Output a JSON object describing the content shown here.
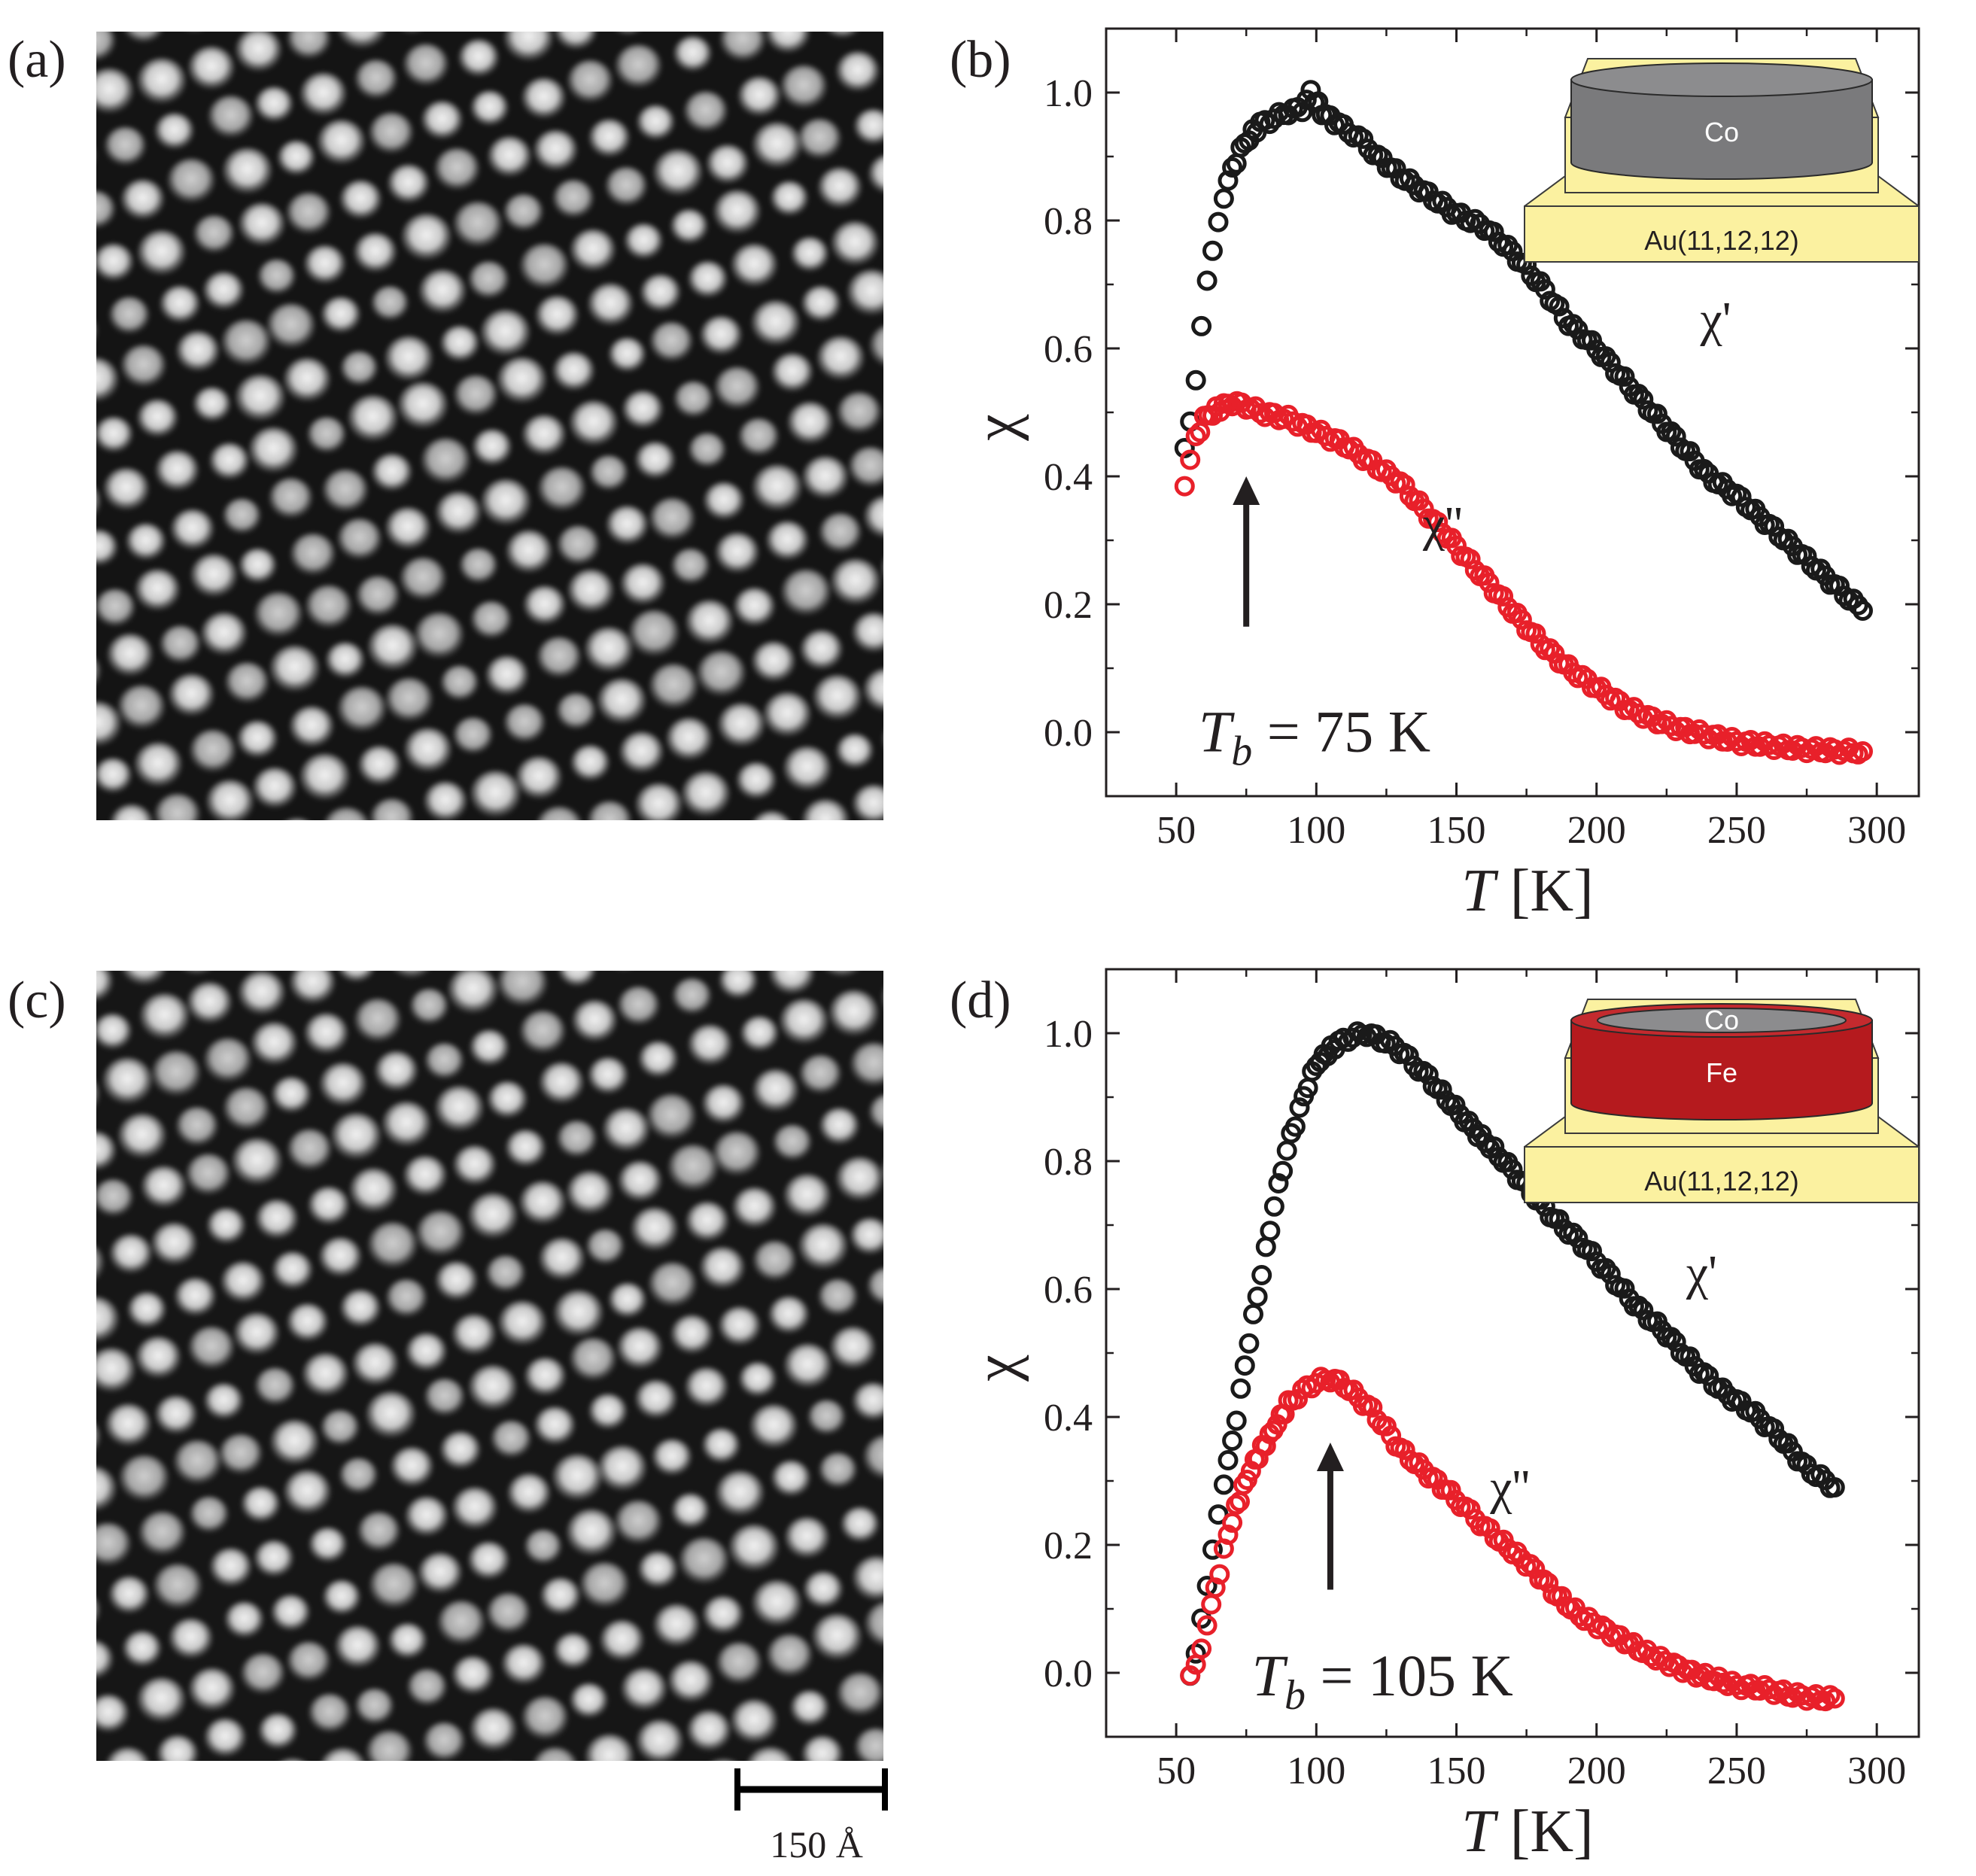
{
  "panels": {
    "a": {
      "label": "(a)"
    },
    "b": {
      "label": "(b)"
    },
    "c": {
      "label": "(c)"
    },
    "d": {
      "label": "(d)"
    }
  },
  "scale_bar": {
    "label": "150 Å"
  },
  "colors": {
    "chi_prime": "#1a1a1a",
    "chi_double_prime": "#e8202a",
    "substrate": "#fbf1a0",
    "co_grey": "#7a7a7c",
    "fe_red": "#b51a1e",
    "axis": "#231f20"
  },
  "chart_data": [
    {
      "id": "b",
      "type": "scatter",
      "xlabel_italic": "T",
      "xlabel_unit": "[K]",
      "ylabel": "χ",
      "xlim": [
        25,
        315
      ],
      "ylim": [
        -0.1,
        1.1
      ],
      "xticks": [
        "50",
        "100",
        "150",
        "200",
        "250",
        "300"
      ],
      "yticks": [
        "0.0",
        "0.2",
        "0.4",
        "0.6",
        "0.8",
        "1.0"
      ],
      "series": [
        {
          "name": "χ'",
          "color": "#1a1a1a",
          "points": [
            [
              53,
              0.45
            ],
            [
              55,
              0.49
            ],
            [
              57,
              0.55
            ],
            [
              59,
              0.63
            ],
            [
              61,
              0.7
            ],
            [
              63,
              0.75
            ],
            [
              65,
              0.8
            ],
            [
              67,
              0.84
            ],
            [
              70,
              0.88
            ],
            [
              73,
              0.91
            ],
            [
              76,
              0.93
            ],
            [
              80,
              0.95
            ],
            [
              85,
              0.96
            ],
            [
              90,
              0.97
            ],
            [
              95,
              0.975
            ],
            [
              98,
              1.0
            ],
            [
              102,
              0.97
            ],
            [
              108,
              0.95
            ],
            [
              115,
              0.93
            ],
            [
              122,
              0.9
            ],
            [
              130,
              0.87
            ],
            [
              140,
              0.84
            ],
            [
              150,
              0.81
            ],
            [
              160,
              0.79
            ],
            [
              170,
              0.75
            ],
            [
              180,
              0.7
            ],
            [
              190,
              0.64
            ],
            [
              200,
              0.6
            ],
            [
              210,
              0.55
            ],
            [
              220,
              0.5
            ],
            [
              230,
              0.45
            ],
            [
              240,
              0.4
            ],
            [
              250,
              0.37
            ],
            [
              260,
              0.33
            ],
            [
              270,
              0.29
            ],
            [
              280,
              0.25
            ],
            [
              290,
              0.21
            ],
            [
              295,
              0.19
            ]
          ]
        },
        {
          "name": "χ''",
          "color": "#e8202a",
          "points": [
            [
              53,
              0.38
            ],
            [
              55,
              0.42
            ],
            [
              57,
              0.46
            ],
            [
              60,
              0.49
            ],
            [
              63,
              0.5
            ],
            [
              67,
              0.51
            ],
            [
              70,
              0.515
            ],
            [
              75,
              0.51
            ],
            [
              80,
              0.5
            ],
            [
              90,
              0.49
            ],
            [
              100,
              0.47
            ],
            [
              110,
              0.45
            ],
            [
              120,
              0.42
            ],
            [
              130,
              0.39
            ],
            [
              140,
              0.34
            ],
            [
              150,
              0.29
            ],
            [
              160,
              0.24
            ],
            [
              170,
              0.19
            ],
            [
              180,
              0.14
            ],
            [
              190,
              0.1
            ],
            [
              200,
              0.07
            ],
            [
              210,
              0.04
            ],
            [
              220,
              0.02
            ],
            [
              230,
              0.005
            ],
            [
              240,
              -0.005
            ],
            [
              250,
              -0.015
            ],
            [
              260,
              -0.02
            ],
            [
              270,
              -0.025
            ],
            [
              280,
              -0.028
            ],
            [
              290,
              -0.03
            ],
            [
              295,
              -0.03
            ]
          ]
        }
      ],
      "label_prime": "χ'",
      "label_double_prime": "χ''",
      "arrow_T": 75,
      "tb_symbol": "T",
      "tb_sub": "b",
      "tb_value": "= 75 K",
      "inset": {
        "top_label": "Co",
        "middle_label": "",
        "base_label": "Au(11,12,12)",
        "bilayer": false
      }
    },
    {
      "id": "d",
      "type": "scatter",
      "xlabel_italic": "T",
      "xlabel_unit": "[K]",
      "ylabel": "χ",
      "xlim": [
        25,
        315
      ],
      "ylim": [
        -0.1,
        1.1
      ],
      "xticks": [
        "50",
        "100",
        "150",
        "200",
        "250",
        "300"
      ],
      "yticks": [
        "0.0",
        "0.2",
        "0.4",
        "0.6",
        "0.8",
        "1.0"
      ],
      "series": [
        {
          "name": "χ'",
          "color": "#1a1a1a",
          "points": [
            [
              55,
              0.0
            ],
            [
              57,
              0.03
            ],
            [
              59,
              0.08
            ],
            [
              61,
              0.13
            ],
            [
              63,
              0.19
            ],
            [
              65,
              0.25
            ],
            [
              67,
              0.3
            ],
            [
              70,
              0.36
            ],
            [
              73,
              0.44
            ],
            [
              76,
              0.52
            ],
            [
              79,
              0.59
            ],
            [
              82,
              0.66
            ],
            [
              85,
              0.73
            ],
            [
              88,
              0.79
            ],
            [
              91,
              0.84
            ],
            [
              94,
              0.88
            ],
            [
              97,
              0.92
            ],
            [
              100,
              0.95
            ],
            [
              104,
              0.97
            ],
            [
              108,
              0.985
            ],
            [
              113,
              0.995
            ],
            [
              118,
              1.0
            ],
            [
              123,
              0.99
            ],
            [
              128,
              0.98
            ],
            [
              133,
              0.96
            ],
            [
              140,
              0.93
            ],
            [
              148,
              0.89
            ],
            [
              156,
              0.85
            ],
            [
              165,
              0.81
            ],
            [
              175,
              0.76
            ],
            [
              185,
              0.71
            ],
            [
              195,
              0.67
            ],
            [
              205,
              0.62
            ],
            [
              215,
              0.57
            ],
            [
              225,
              0.53
            ],
            [
              235,
              0.48
            ],
            [
              245,
              0.44
            ],
            [
              255,
              0.41
            ],
            [
              265,
              0.37
            ],
            [
              275,
              0.32
            ],
            [
              285,
              0.29
            ]
          ]
        },
        {
          "name": "χ''",
          "color": "#e8202a",
          "points": [
            [
              55,
              -0.01
            ],
            [
              57,
              0.01
            ],
            [
              59,
              0.04
            ],
            [
              61,
              0.08
            ],
            [
              64,
              0.13
            ],
            [
              67,
              0.19
            ],
            [
              70,
              0.24
            ],
            [
              74,
              0.29
            ],
            [
              78,
              0.33
            ],
            [
              82,
              0.36
            ],
            [
              86,
              0.39
            ],
            [
              90,
              0.42
            ],
            [
              95,
              0.44
            ],
            [
              100,
              0.455
            ],
            [
              105,
              0.46
            ],
            [
              110,
              0.45
            ],
            [
              115,
              0.43
            ],
            [
              120,
              0.41
            ],
            [
              125,
              0.38
            ],
            [
              130,
              0.35
            ],
            [
              135,
              0.33
            ],
            [
              140,
              0.31
            ],
            [
              148,
              0.28
            ],
            [
              155,
              0.25
            ],
            [
              162,
              0.22
            ],
            [
              170,
              0.19
            ],
            [
              178,
              0.16
            ],
            [
              186,
              0.12
            ],
            [
              194,
              0.09
            ],
            [
              202,
              0.07
            ],
            [
              210,
              0.05
            ],
            [
              218,
              0.03
            ],
            [
              226,
              0.015
            ],
            [
              234,
              0.0
            ],
            [
              242,
              -0.01
            ],
            [
              250,
              -0.02
            ],
            [
              260,
              -0.025
            ],
            [
              270,
              -0.035
            ],
            [
              280,
              -0.04
            ],
            [
              285,
              -0.04
            ]
          ]
        }
      ],
      "label_prime": "χ'",
      "label_double_prime": "χ''",
      "arrow_T": 105,
      "tb_symbol": "T",
      "tb_sub": "b",
      "tb_value": "= 105 K",
      "inset": {
        "top_label": "Co",
        "middle_label": "Fe",
        "base_label": "Au(11,12,12)",
        "bilayer": true
      }
    }
  ]
}
